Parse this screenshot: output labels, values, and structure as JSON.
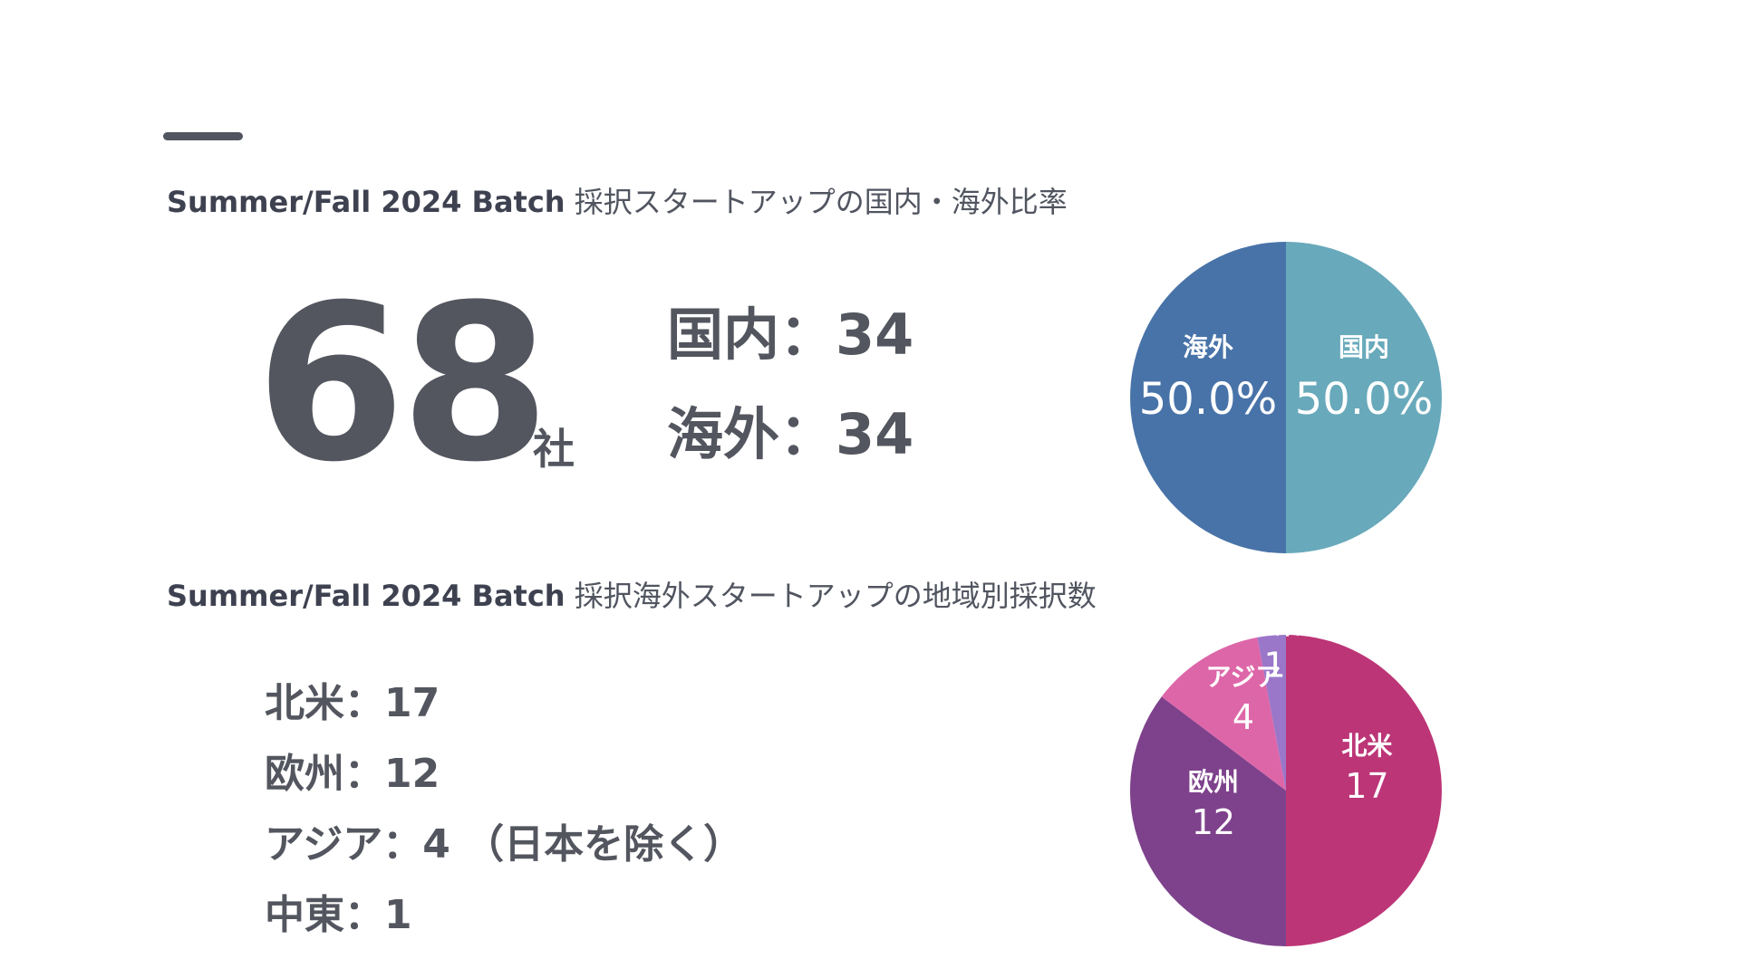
{
  "title1": {
    "bold": "Summer/Fall 2024 Batch",
    "rest": " 採択スタートアップの国内・海外比率"
  },
  "total": {
    "number": "68",
    "unit": "社"
  },
  "ratio_text": {
    "domestic": "国内：34",
    "overseas": "海外：34"
  },
  "title2": {
    "bold": "Summer/Fall 2024 Batch",
    "rest": " 採択海外スタートアップの地域別採択数"
  },
  "regions_text": [
    "北米：17",
    "欧州：12",
    "アジア：4 （日本を除く）",
    "中東：1"
  ],
  "colors": {
    "text": "#50555f",
    "domestic": "#68aabb",
    "overseas": "#4873a8",
    "north_america": "#bc3677",
    "europe": "#7e418c",
    "asia": "#dd66a8",
    "middle_east": "#9a77c9"
  },
  "chart_data": [
    {
      "type": "pie",
      "title": "",
      "categories": [
        "国内",
        "海外"
      ],
      "values": [
        34,
        34
      ],
      "labels": [
        "50.0%",
        "50.0%"
      ],
      "colors": [
        "#68aabb",
        "#4873a8"
      ]
    },
    {
      "type": "pie",
      "title": "",
      "categories": [
        "北米",
        "欧州",
        "アジア",
        "中東"
      ],
      "values": [
        17,
        12,
        4,
        1
      ],
      "labels": [
        "17",
        "12",
        "4",
        "1"
      ],
      "colors": [
        "#bc3677",
        "#7e418c",
        "#dd66a8",
        "#9a77c9"
      ]
    }
  ]
}
